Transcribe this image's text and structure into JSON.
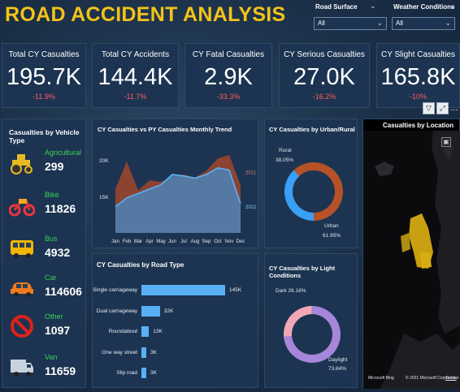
{
  "title": "ROAD ACCIDENT ANALYSIS",
  "slicers": {
    "road_surface": {
      "label": "Road Surface",
      "value": "All"
    },
    "weather": {
      "label": "Weather Conditions",
      "value": "All"
    }
  },
  "kpis": [
    {
      "label": "Total CY Casualties",
      "value": "195.7K",
      "change": "-11.9%"
    },
    {
      "label": "Total CY Accidents",
      "value": "144.4K",
      "change": "-11.7%"
    },
    {
      "label": "CY Fatal Casualties",
      "value": "2.9K",
      "change": "-33.3%"
    },
    {
      "label": "CY Serious Casualties",
      "value": "27.0K",
      "change": "-16.2%"
    },
    {
      "label": "CY Slight Casualties",
      "value": "165.8K",
      "change": "-10%"
    }
  ],
  "vehicle": {
    "title": "Casualties by Vehicle Type",
    "items": [
      {
        "name": "Agricultural",
        "value": "299",
        "icon": "tractor-icon"
      },
      {
        "name": "Bike",
        "value": "11826",
        "icon": "motorbike-icon"
      },
      {
        "name": "Bus",
        "value": "4932",
        "icon": "bus-icon"
      },
      {
        "name": "Car",
        "value": "114606",
        "icon": "car-icon"
      },
      {
        "name": "Other",
        "value": "1097",
        "icon": "prohibited-icon"
      },
      {
        "name": "Van",
        "value": "11659",
        "icon": "van-icon"
      }
    ]
  },
  "trend": {
    "title": "CY Casualties vs PY Casualties Monthly Trend",
    "legend_cy": "2022",
    "legend_py": "2021"
  },
  "urban": {
    "title": "CY Casualties by Urban/Rural",
    "rural_label": "Rural",
    "rural_pct": "38.05%",
    "urban_label": "Urban",
    "urban_pct": "61.95%"
  },
  "location": {
    "title": "Casualties by Location",
    "footer": "Microsoft Bing",
    "copyright": "© 2021 Microsoft Corporation",
    "terms": "Terms"
  },
  "road": {
    "title": "CY Casualties by Road Type"
  },
  "light": {
    "title": "CY Casualties by Light Conditions",
    "dark_label": "Dark 26.16%",
    "daylight_label": "Daylight",
    "daylight_pct": "73.84%"
  },
  "colors": {
    "title": "#f2c318",
    "panel": "#1c3451",
    "cy_line": "#5ab0f5",
    "py_area": "#a0472c",
    "urban": "#b65128",
    "rural": "#39a0f5",
    "daylight": "#a686d9",
    "dark": "#f1a7b6",
    "vehicle_name": "#39d353",
    "change_neg": "#ff5c5c"
  },
  "chart_data": [
    {
      "type": "area",
      "title": "CY Casualties vs PY Casualties Monthly Trend",
      "categories": [
        "Jan",
        "Feb",
        "Mar",
        "Apr",
        "May",
        "Jun",
        "Jul",
        "Aug",
        "Sep",
        "Oct",
        "Nov",
        "Dec"
      ],
      "yticks": [
        "20K",
        "15K"
      ],
      "ylim": [
        10000,
        22000
      ],
      "series": [
        {
          "name": "2021",
          "values": [
            16000,
            19800,
            15800,
            17200,
            17000,
            17500,
            18000,
            17600,
            18500,
            20200,
            20700,
            16500
          ]
        },
        {
          "name": "2022",
          "values": [
            13600,
            14800,
            15400,
            16000,
            16600,
            18000,
            17800,
            17500,
            18000,
            18900,
            18600,
            14000
          ]
        }
      ]
    },
    {
      "type": "pie",
      "title": "CY Casualties by Urban/Rural",
      "labels": [
        "Rural",
        "Urban"
      ],
      "values": [
        38.05,
        61.95
      ]
    },
    {
      "type": "bar",
      "title": "CY Casualties by Road Type",
      "categories": [
        "Single carriageway",
        "Dual carriageway",
        "Roundabout",
        "One way street",
        "Slip road"
      ],
      "values": [
        145,
        32,
        13,
        3,
        3
      ],
      "value_labels": [
        "145K",
        "32K",
        "13K",
        "3K",
        "3K"
      ]
    },
    {
      "type": "pie",
      "title": "CY Casualties by Light Conditions",
      "labels": [
        "Dark",
        "Daylight"
      ],
      "values": [
        26.16,
        73.84
      ]
    }
  ]
}
